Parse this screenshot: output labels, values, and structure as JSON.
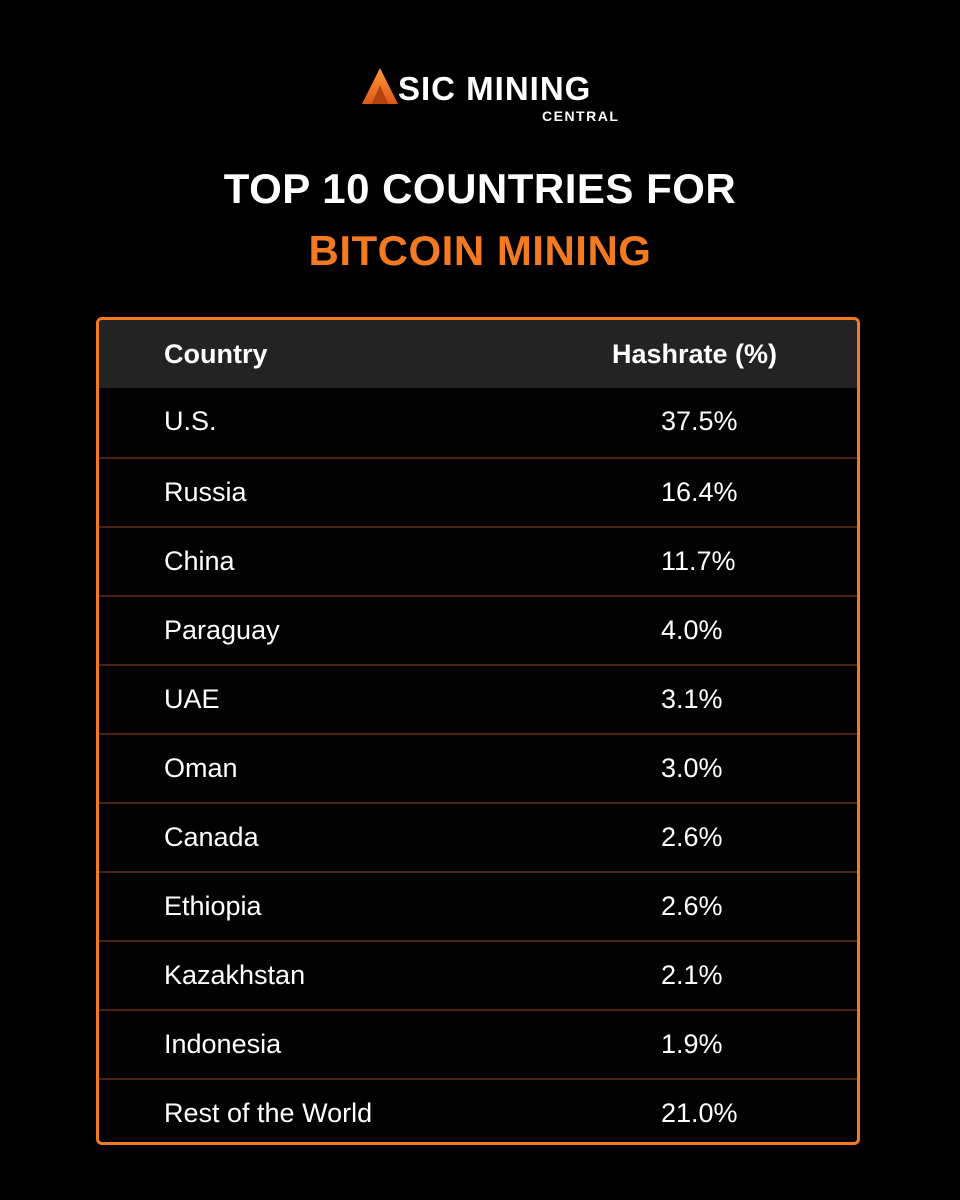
{
  "brand": {
    "name_main": "SIC MINING",
    "name_sub": "CENTRAL",
    "accent_color": "#f47a22"
  },
  "title": {
    "line1": "TOP 10 COUNTRIES FOR",
    "line2": "BITCOIN MINING"
  },
  "chart_data": {
    "type": "table",
    "columns": [
      "Country",
      "Hashrate (%)"
    ],
    "rows": [
      {
        "country": "U.S.",
        "hashrate": "37.5%"
      },
      {
        "country": "Russia",
        "hashrate": "16.4%"
      },
      {
        "country": "China",
        "hashrate": "11.7%"
      },
      {
        "country": "Paraguay",
        "hashrate": "4.0%"
      },
      {
        "country": "UAE",
        "hashrate": "3.1%"
      },
      {
        "country": "Oman",
        "hashrate": "3.0%"
      },
      {
        "country": "Canada",
        "hashrate": "2.6%"
      },
      {
        "country": "Ethiopia",
        "hashrate": "2.6%"
      },
      {
        "country": "Kazakhstan",
        "hashrate": "2.1%"
      },
      {
        "country": "Indonesia",
        "hashrate": "1.9%"
      },
      {
        "country": "Rest of the World",
        "hashrate": "21.0%"
      }
    ]
  }
}
